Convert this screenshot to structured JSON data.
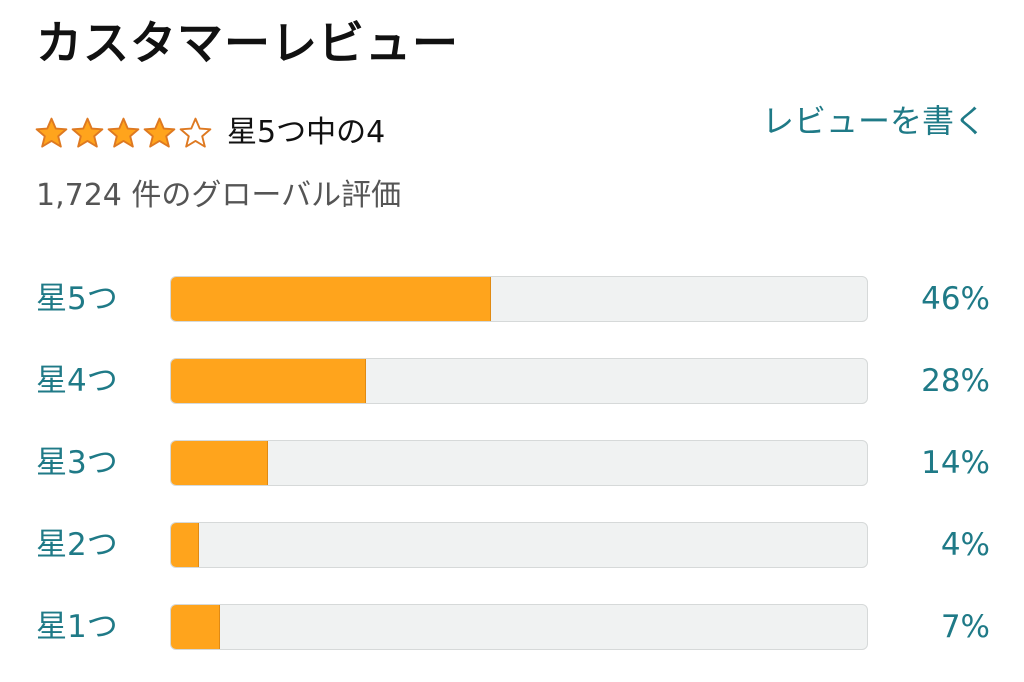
{
  "header": {
    "title": "カスタマーレビュー",
    "write_review_label": "レビューを書く"
  },
  "rating": {
    "value": 4,
    "max": 5,
    "text": "星5つ中の4",
    "star_fill_color": "#ffa41c",
    "star_outline_color": "#de7921",
    "global_count_text": "1,724 件のグローバル評価"
  },
  "histogram": [
    {
      "label": "星5つ",
      "percent": 46,
      "percent_text": "46%"
    },
    {
      "label": "星4つ",
      "percent": 28,
      "percent_text": "28%"
    },
    {
      "label": "星3つ",
      "percent": 14,
      "percent_text": "14%"
    },
    {
      "label": "星2つ",
      "percent": 4,
      "percent_text": "4%"
    },
    {
      "label": "星1つ",
      "percent": 7,
      "percent_text": "7%"
    }
  ],
  "colors": {
    "link": "#1f7a87",
    "bar_fill": "#ffa41c",
    "bar_track": "#f0f2f2"
  }
}
